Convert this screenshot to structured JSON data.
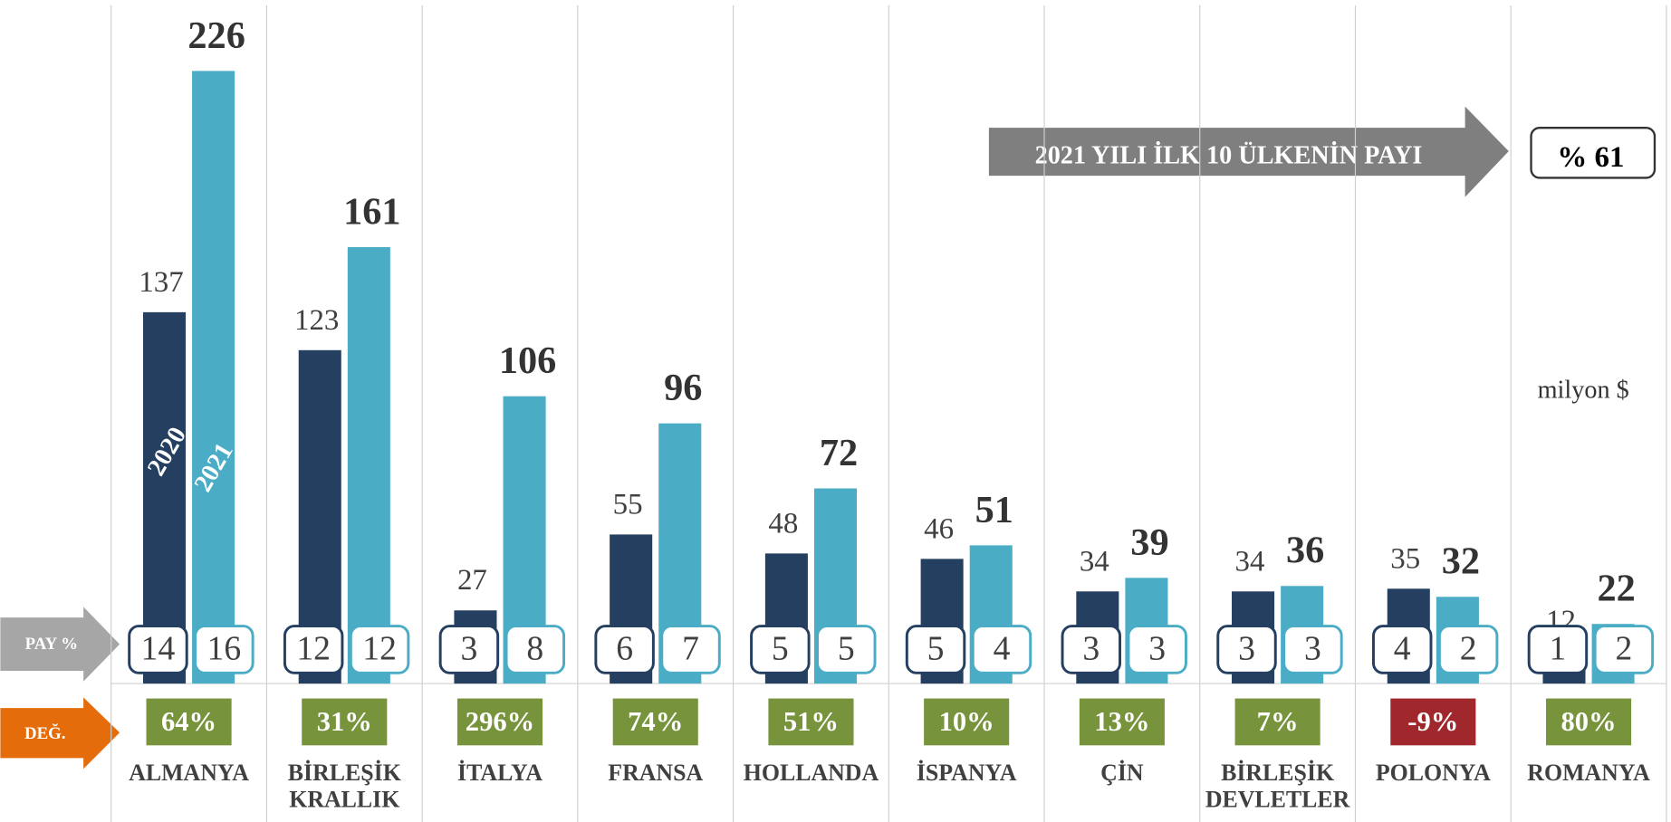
{
  "chart_data": {
    "type": "bar",
    "categories": [
      "ALMANYA",
      "BİRLEŞİK\nKRALLIK",
      "İTALYA",
      "FRANSA",
      "HOLLANDA",
      "İSPANYA",
      "ÇİN",
      "BİRLEŞİK\nDEVLETLER",
      "POLONYA",
      "ROMANYA"
    ],
    "series": [
      {
        "name": "2020",
        "color": "#243f60",
        "values": [
          137,
          123,
          27,
          55,
          48,
          46,
          34,
          34,
          35,
          12
        ],
        "share": [
          14,
          12,
          3,
          6,
          5,
          5,
          3,
          3,
          4,
          1
        ]
      },
      {
        "name": "2021",
        "color": "#4bacc6",
        "values": [
          226,
          161,
          106,
          96,
          72,
          51,
          39,
          36,
          32,
          22
        ],
        "share": [
          16,
          12,
          8,
          7,
          5,
          4,
          3,
          3,
          2,
          2
        ]
      }
    ],
    "change": {
      "values": [
        64,
        31,
        296,
        74,
        51,
        10,
        13,
        7,
        -9,
        80
      ],
      "value_labels": [
        "64%",
        "31%",
        "296%",
        "74%",
        "51%",
        "10%",
        "13%",
        "7%",
        "-9%",
        "80%"
      ],
      "color": "#77933c",
      "negative_color": "#a0282c"
    },
    "share_label": "PAY %",
    "change_label": "DEĞ.",
    "annotation": "2021 YILI İLK 10 ÜLKENİN PAYI",
    "annotation_value": "% 61",
    "unit": "milyon $",
    "ylim": [
      0,
      240
    ]
  }
}
